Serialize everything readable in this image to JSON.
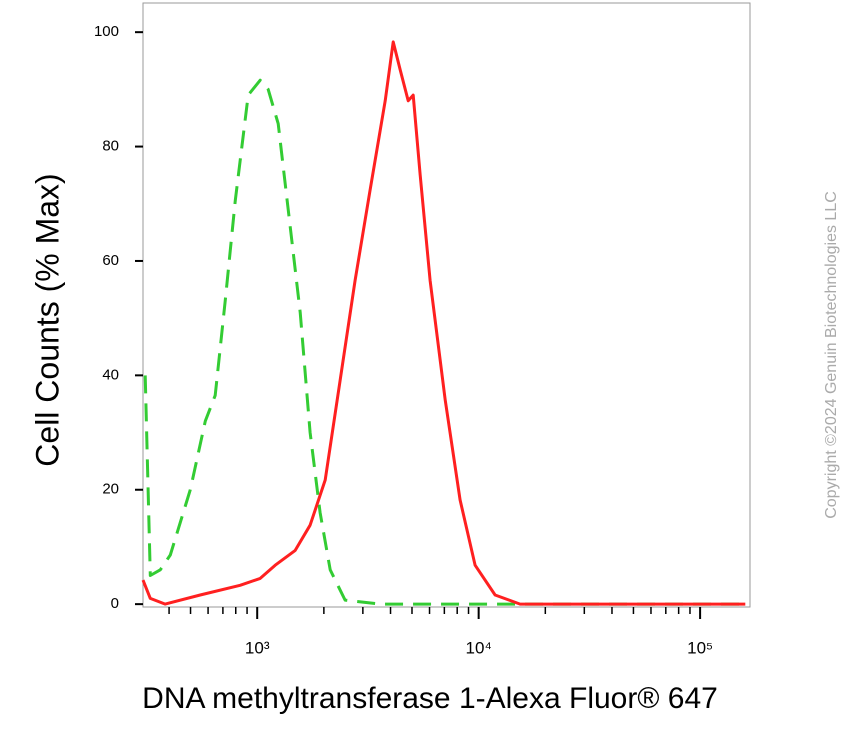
{
  "chart_data": {
    "type": "line",
    "x_label": "DNA methyltransferase 1-Alexa Fluor® 647",
    "y_label": "Cell Counts (% Max)",
    "watermark": "Copyright ©2024 Genuin Biotechnologies LLC",
    "xscale": "log",
    "xlim": [
      305,
      168000
    ],
    "ylim": [
      -0.5,
      105.1
    ],
    "xticks": [
      {
        "value": 1000,
        "label": "10³"
      },
      {
        "value": 10000,
        "label": "10⁴"
      },
      {
        "value": 100000,
        "label": "10⁵"
      }
    ],
    "xminorticks": [
      400,
      500,
      600,
      700,
      800,
      900,
      2000,
      3000,
      4000,
      5000,
      6000,
      7000,
      8000,
      9000,
      20000,
      30000,
      40000,
      50000,
      60000,
      70000,
      80000,
      90000
    ],
    "yticks": [
      0,
      20,
      40,
      60,
      80,
      100
    ],
    "series": [
      {
        "color": "#33cc33",
        "style": "dashed",
        "x": [
          312,
          329,
          365,
          405,
          499,
          583,
          646,
          717,
          796,
          911,
          1032,
          1121,
          1244,
          1380,
          1563,
          1734,
          1923,
          2136,
          2495,
          3589,
          12500,
          160000
        ],
        "values": [
          40,
          5,
          6,
          8.6,
          20,
          32,
          36.5,
          53,
          70.6,
          89,
          91.6,
          90,
          84,
          69,
          51,
          30,
          16,
          6,
          0.7,
          0,
          0,
          0
        ]
      },
      {
        "color": "#ff2020",
        "style": "solid",
        "x": [
          305,
          329,
          384,
          553,
          837,
          1032,
          1206,
          1485,
          1734,
          2028,
          2371,
          2768,
          3234,
          3783,
          4111,
          4424,
          4807,
          5063,
          5445,
          6039,
          7061,
          8246,
          9636,
          11860,
          15380,
          160000
        ],
        "values": [
          4.2,
          1,
          0,
          1.6,
          3.3,
          4.5,
          6.8,
          9.4,
          13.8,
          21.7,
          39.2,
          56.6,
          72.4,
          88,
          98.3,
          93.4,
          88,
          89,
          75,
          56.6,
          35.7,
          18.2,
          6.8,
          1.6,
          0,
          0
        ]
      }
    ]
  }
}
